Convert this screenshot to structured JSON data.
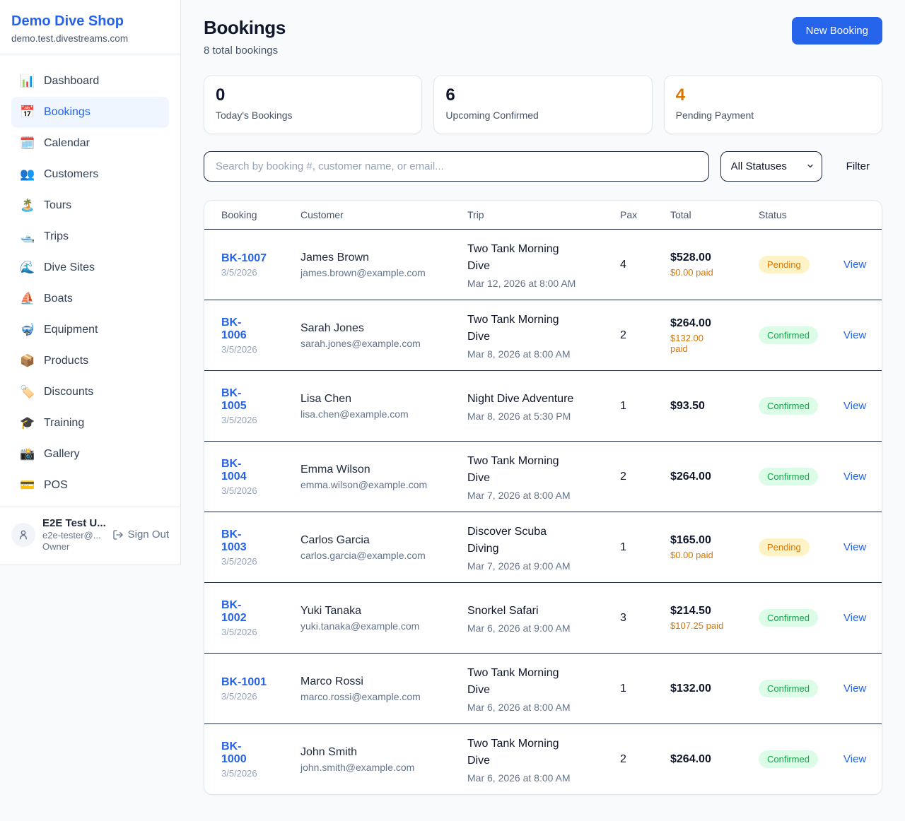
{
  "theme": {
    "accent": "#2563eb",
    "pending_text": "#d97706",
    "confirmed_text": "#16a34a"
  },
  "brand": {
    "name": "Demo Dive Shop",
    "domain": "demo.test.divestreams.com"
  },
  "sidebar": {
    "items": [
      {
        "icon": "📊",
        "icon_name": "bar-chart-icon",
        "label": "Dashboard",
        "active": false
      },
      {
        "icon": "📅",
        "icon_name": "calendar-icon",
        "label": "Bookings",
        "active": true
      },
      {
        "icon": "🗓️",
        "icon_name": "spiral-calendar-icon",
        "label": "Calendar",
        "active": false
      },
      {
        "icon": "👥",
        "icon_name": "people-icon",
        "label": "Customers",
        "active": false
      },
      {
        "icon": "🏝️",
        "icon_name": "island-icon",
        "label": "Tours",
        "active": false
      },
      {
        "icon": "🛥️",
        "icon_name": "boat-icon",
        "label": "Trips",
        "active": false
      },
      {
        "icon": "🌊",
        "icon_name": "wave-icon",
        "label": "Dive Sites",
        "active": false
      },
      {
        "icon": "⛵",
        "icon_name": "sailboat-icon",
        "label": "Boats",
        "active": false
      },
      {
        "icon": "🤿",
        "icon_name": "diving-mask-icon",
        "label": "Equipment",
        "active": false
      },
      {
        "icon": "📦",
        "icon_name": "package-icon",
        "label": "Products",
        "active": false
      },
      {
        "icon": "🏷️",
        "icon_name": "tag-icon",
        "label": "Discounts",
        "active": false
      },
      {
        "icon": "🎓",
        "icon_name": "graduation-cap-icon",
        "label": "Training",
        "active": false
      },
      {
        "icon": "📸",
        "icon_name": "camera-icon",
        "label": "Gallery",
        "active": false
      },
      {
        "icon": "💳",
        "icon_name": "credit-card-icon",
        "label": "POS",
        "active": false
      }
    ]
  },
  "user": {
    "name": "E2E Test U...",
    "email": "e2e-tester@...",
    "role": "Owner",
    "sign_out_label": "Sign Out"
  },
  "header": {
    "title": "Bookings",
    "subtitle": "8 total bookings",
    "new_booking_label": "New Booking"
  },
  "stats": [
    {
      "value": "0",
      "label": "Today's Bookings",
      "value_color": "#0f172a"
    },
    {
      "value": "6",
      "label": "Upcoming Confirmed",
      "value_color": "#0f172a"
    },
    {
      "value": "4",
      "label": "Pending Payment",
      "value_color": "#d97706"
    }
  ],
  "filters": {
    "search_placeholder": "Search by booking #, customer name, or email...",
    "status_selected": "All Statuses",
    "filter_label": "Filter"
  },
  "status_styles": {
    "Pending": {
      "bg": "#fef3c7",
      "text": "#d97706"
    },
    "Confirmed": {
      "bg": "#dcfce7",
      "text": "#16a34a"
    }
  },
  "table": {
    "columns": [
      "Booking",
      "Customer",
      "Trip",
      "Pax",
      "Total",
      "Status",
      ""
    ],
    "view_label": "View",
    "rows": [
      {
        "id": "BK-1007",
        "date": "3/5/2026",
        "customer": "James Brown",
        "email": "james.brown@example.com",
        "trip": "Two Tank Morning\nDive",
        "trip_time": "Mar 12, 2026 at 8:00 AM",
        "pax": "4",
        "total": "$528.00",
        "paid": "$0.00 paid",
        "status": "Pending"
      },
      {
        "id": "BK-\n1006",
        "date": "3/5/2026",
        "customer": "Sarah Jones",
        "email": "sarah.jones@example.com",
        "trip": "Two Tank Morning\nDive",
        "trip_time": "Mar 8, 2026 at 8:00 AM",
        "pax": "2",
        "total": "$264.00",
        "paid": "$132.00\npaid",
        "status": "Confirmed"
      },
      {
        "id": "BK-\n1005",
        "date": "3/5/2026",
        "customer": "Lisa Chen",
        "email": "lisa.chen@example.com",
        "trip": "Night Dive Adventure",
        "trip_time": "Mar 8, 2026 at 5:30 PM",
        "pax": "1",
        "total": "$93.50",
        "paid": "",
        "status": "Confirmed"
      },
      {
        "id": "BK-\n1004",
        "date": "3/5/2026",
        "customer": "Emma Wilson",
        "email": "emma.wilson@example.com",
        "trip": "Two Tank Morning\nDive",
        "trip_time": "Mar 7, 2026 at 8:00 AM",
        "pax": "2",
        "total": "$264.00",
        "paid": "",
        "status": "Confirmed"
      },
      {
        "id": "BK-\n1003",
        "date": "3/5/2026",
        "customer": "Carlos Garcia",
        "email": "carlos.garcia@example.com",
        "trip": "Discover Scuba\nDiving",
        "trip_time": "Mar 7, 2026 at 9:00 AM",
        "pax": "1",
        "total": "$165.00",
        "paid": "$0.00 paid",
        "status": "Pending"
      },
      {
        "id": "BK-\n1002",
        "date": "3/5/2026",
        "customer": "Yuki Tanaka",
        "email": "yuki.tanaka@example.com",
        "trip": "Snorkel Safari",
        "trip_time": "Mar 6, 2026 at 9:00 AM",
        "pax": "3",
        "total": "$214.50",
        "paid": "$107.25 paid",
        "status": "Confirmed"
      },
      {
        "id": "BK-1001",
        "date": "3/5/2026",
        "customer": "Marco Rossi",
        "email": "marco.rossi@example.com",
        "trip": "Two Tank Morning\nDive",
        "trip_time": "Mar 6, 2026 at 8:00 AM",
        "pax": "1",
        "total": "$132.00",
        "paid": "",
        "status": "Confirmed"
      },
      {
        "id": "BK-\n1000",
        "date": "3/5/2026",
        "customer": "John Smith",
        "email": "john.smith@example.com",
        "trip": "Two Tank Morning\nDive",
        "trip_time": "Mar 6, 2026 at 8:00 AM",
        "pax": "2",
        "total": "$264.00",
        "paid": "",
        "status": "Confirmed"
      }
    ]
  }
}
